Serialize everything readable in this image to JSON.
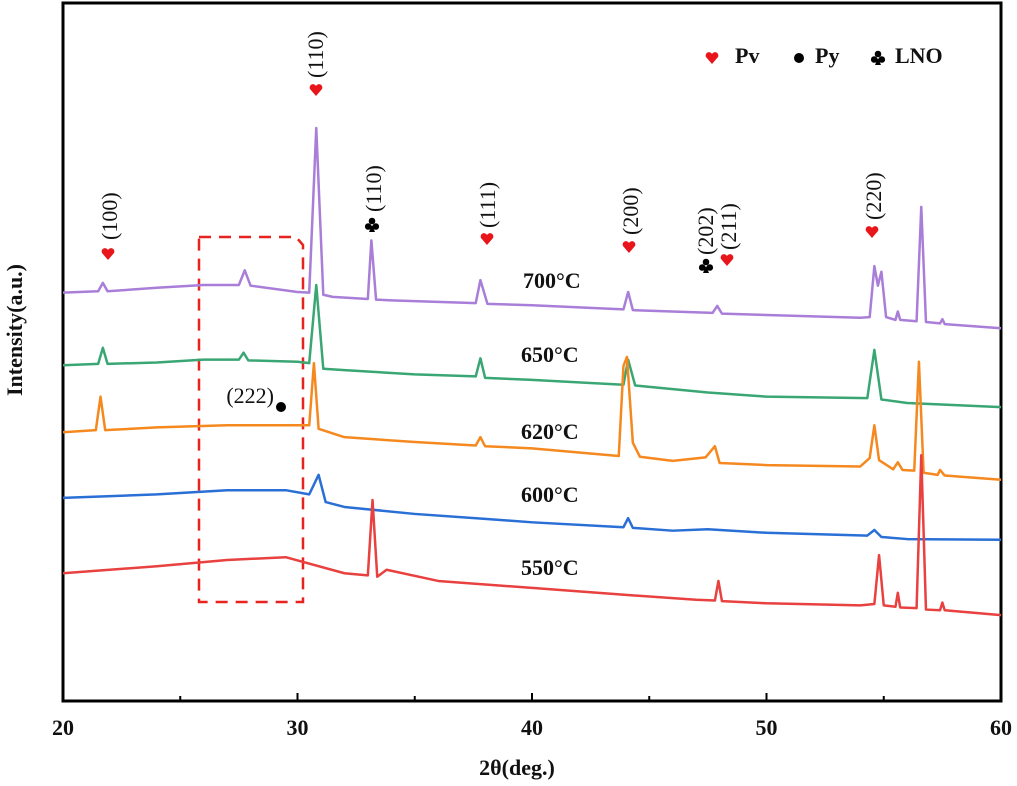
{
  "chart_data": {
    "type": "line",
    "x_label": "2θ(deg.)",
    "y_label": "Intensity(a.u.)",
    "xlim": [
      20,
      60
    ],
    "xticks": [
      20,
      30,
      40,
      50,
      60
    ],
    "xminorticks": [
      25,
      35,
      45,
      55
    ],
    "ylim": [
      0,
      100
    ],
    "series": [
      {
        "name": "700°C",
        "color": "#a97ed8",
        "x": [
          20,
          21.5,
          21.7,
          21.9,
          24,
          26,
          27.5,
          27.75,
          28,
          30,
          30.5,
          30.8,
          31.1,
          31.5,
          33,
          33.15,
          33.35,
          34,
          37.6,
          37.8,
          38.1,
          40,
          43.9,
          44.1,
          44.3,
          47.7,
          47.9,
          48.1,
          50,
          54,
          54.4,
          54.6,
          54.75,
          54.9,
          55.1,
          55.5,
          55.6,
          55.7,
          56.4,
          56.6,
          56.8,
          57.4,
          57.5,
          57.6,
          60
        ],
        "values": [
          58.5,
          58.7,
          59.9,
          58.7,
          59.2,
          59.6,
          59.6,
          61.7,
          59.5,
          58.6,
          58.5,
          82.1,
          58.2,
          57.9,
          57.6,
          66.0,
          57.5,
          57.4,
          57.0,
          60.3,
          56.9,
          56.7,
          56.1,
          58.6,
          56.0,
          55.6,
          56.6,
          55.5,
          55.3,
          54.9,
          55.0,
          62.3,
          59.5,
          61.5,
          55.0,
          54.6,
          55.8,
          54.6,
          54.4,
          70.8,
          54.3,
          54.1,
          54.7,
          54.0,
          53.4
        ]
      },
      {
        "name": "650°C",
        "color": "#3aa673",
        "x": [
          20,
          21.5,
          21.7,
          21.9,
          24,
          26,
          27.5,
          27.7,
          27.9,
          30,
          30.5,
          30.8,
          31.1,
          32,
          35,
          37.6,
          37.8,
          38.0,
          40,
          43.9,
          44.1,
          44.4,
          47.5,
          50,
          54.3,
          54.6,
          54.9,
          56,
          60
        ],
        "values": [
          48.1,
          48.3,
          50.6,
          48.3,
          48.5,
          48.9,
          48.9,
          49.9,
          48.8,
          48.6,
          48.4,
          59.6,
          47.6,
          47.4,
          46.8,
          46.5,
          49.1,
          46.3,
          46.0,
          45.3,
          48.9,
          45.2,
          44.2,
          43.6,
          43.4,
          50.3,
          43.2,
          42.7,
          42.1
        ]
      },
      {
        "name": "620°C",
        "color": "#f5891f",
        "x": [
          20,
          21.4,
          21.6,
          21.8,
          24,
          27,
          30,
          30.5,
          30.7,
          30.9,
          32,
          35,
          37.6,
          37.8,
          38.0,
          40,
          43.7,
          43.9,
          44.05,
          44.3,
          44.6,
          46,
          47.4,
          47.8,
          48.0,
          50,
          54,
          54.4,
          54.6,
          54.8,
          55.4,
          55.6,
          55.8,
          56.3,
          56.5,
          56.7,
          57.3,
          57.4,
          57.6,
          60
        ],
        "values": [
          38.5,
          38.8,
          43.6,
          38.8,
          39.2,
          39.5,
          39.5,
          39.5,
          48.4,
          39.0,
          37.8,
          37.1,
          36.6,
          37.8,
          36.5,
          36.2,
          35.1,
          48.0,
          49.3,
          37.0,
          35.0,
          34.4,
          34.9,
          36.5,
          34.1,
          33.8,
          33.6,
          34.8,
          39.5,
          34.5,
          33.2,
          34.2,
          33.1,
          33.0,
          48.6,
          32.7,
          32.4,
          33.1,
          32.3,
          31.7
        ]
      },
      {
        "name": "600°C",
        "color": "#2a6fd6",
        "x": [
          20,
          24,
          27,
          29.5,
          30.5,
          30.9,
          31.2,
          32,
          35,
          38,
          40,
          43.9,
          44.1,
          44.3,
          46,
          47.5,
          50,
          54.3,
          54.6,
          54.9,
          56,
          60
        ],
        "values": [
          29.1,
          29.6,
          30.2,
          30.2,
          29.6,
          32.4,
          28.5,
          27.8,
          26.8,
          26.1,
          25.6,
          24.9,
          26.2,
          24.8,
          24.4,
          24.6,
          24.1,
          23.7,
          24.5,
          23.5,
          23.2,
          23.1
        ]
      },
      {
        "name": "550°C",
        "color": "#e8413f",
        "x": [
          20,
          24,
          27,
          29.5,
          32,
          33.0,
          33.2,
          33.4,
          33.8,
          36,
          40,
          44,
          47,
          47.8,
          47.95,
          48.1,
          50,
          54,
          54.6,
          54.8,
          55.0,
          55.5,
          55.6,
          55.7,
          56.4,
          56.6,
          56.8,
          57.4,
          57.5,
          57.6,
          60
        ],
        "values": [
          18.3,
          19.3,
          20.2,
          20.6,
          18.3,
          18.0,
          28.8,
          17.8,
          18.8,
          17.2,
          16.2,
          15.2,
          14.5,
          14.4,
          17.2,
          14.3,
          14.0,
          13.7,
          13.9,
          20.9,
          13.7,
          13.5,
          15.5,
          13.4,
          13.3,
          35.2,
          13.1,
          13.0,
          14.1,
          13.0,
          12.3
        ]
      }
    ],
    "legend": [
      "Pv",
      "Py",
      "LNO"
    ],
    "annotations": [
      "(100)",
      "(110)",
      "(110)",
      "(111)",
      "(200)",
      "(202)",
      "(211)",
      "(220)",
      "(222)"
    ]
  }
}
